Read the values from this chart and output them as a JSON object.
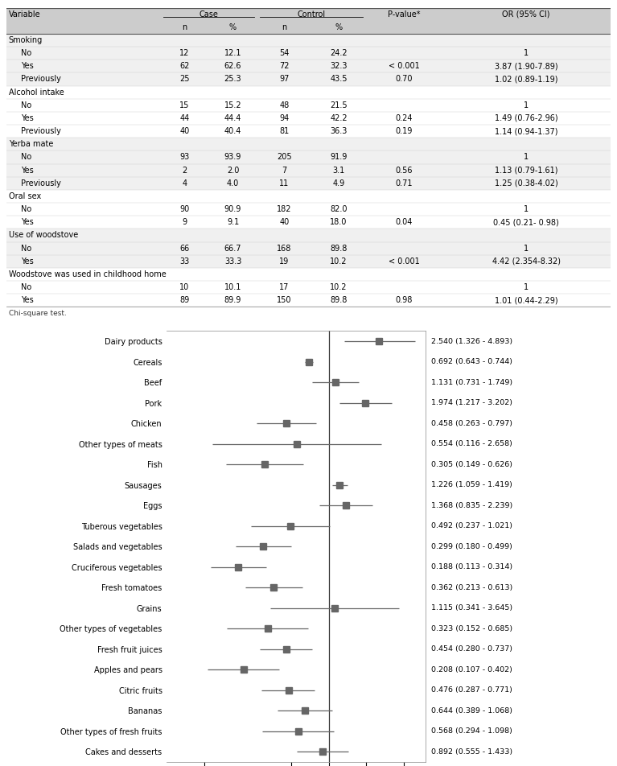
{
  "table": {
    "sections": [
      {
        "title": "Smoking",
        "bg": "#f0f0f0",
        "rows": [
          {
            "label": "No",
            "cn": "12",
            "cp": "12.1",
            "tn": "54",
            "tp": "24.2",
            "pv": "",
            "or": "1"
          },
          {
            "label": "Yes",
            "cn": "62",
            "cp": "62.6",
            "tn": "72",
            "tp": "32.3",
            "pv": "< 0.001",
            "or": "3.87 (1.90-7.89)"
          },
          {
            "label": "Previously",
            "cn": "25",
            "cp": "25.3",
            "tn": "97",
            "tp": "43.5",
            "pv": "0.70",
            "or": "1.02 (0.89-1.19)"
          }
        ]
      },
      {
        "title": "Alcohol intake",
        "bg": "#ffffff",
        "rows": [
          {
            "label": "No",
            "cn": "15",
            "cp": "15.2",
            "tn": "48",
            "tp": "21.5",
            "pv": "",
            "or": "1"
          },
          {
            "label": "Yes",
            "cn": "44",
            "cp": "44.4",
            "tn": "94",
            "tp": "42.2",
            "pv": "0.24",
            "or": "1.49 (0.76-2.96)"
          },
          {
            "label": "Previously",
            "cn": "40",
            "cp": "40.4",
            "tn": "81",
            "tp": "36.3",
            "pv": "0.19",
            "or": "1.14 (0.94-1.37)"
          }
        ]
      },
      {
        "title": "Yerba mate",
        "bg": "#f0f0f0",
        "rows": [
          {
            "label": "No",
            "cn": "93",
            "cp": "93.9",
            "tn": "205",
            "tp": "91.9",
            "pv": "",
            "or": "1"
          },
          {
            "label": "Yes",
            "cn": "2",
            "cp": "2.0",
            "tn": "7",
            "tp": "3.1",
            "pv": "0.56",
            "or": "1.13 (0.79-1.61)"
          },
          {
            "label": "Previously",
            "cn": "4",
            "cp": "4.0",
            "tn": "11",
            "tp": "4.9",
            "pv": "0.71",
            "or": "1.25 (0.38-4.02)"
          }
        ]
      },
      {
        "title": "Oral sex",
        "bg": "#ffffff",
        "rows": [
          {
            "label": "No",
            "cn": "90",
            "cp": "90.9",
            "tn": "182",
            "tp": "82.0",
            "pv": "",
            "or": "1"
          },
          {
            "label": "Yes",
            "cn": "9",
            "cp": "9.1",
            "tn": "40",
            "tp": "18.0",
            "pv": "0.04",
            "or": "0.45 (0.21- 0.98)"
          }
        ]
      },
      {
        "title": "Use of woodstove",
        "bg": "#f0f0f0",
        "rows": [
          {
            "label": "No",
            "cn": "66",
            "cp": "66.7",
            "tn": "168",
            "tp": "89.8",
            "pv": "",
            "or": "1"
          },
          {
            "label": "Yes",
            "cn": "33",
            "cp": "33.3",
            "tn": "19",
            "tp": "10.2",
            "pv": "< 0.001",
            "or": "4.42 (2.354-8.32)"
          }
        ]
      },
      {
        "title": "Woodstove was used in childhood home",
        "bg": "#ffffff",
        "rows": [
          {
            "label": "No",
            "cn": "10",
            "cp": "10.1",
            "tn": "17",
            "tp": "10.2",
            "pv": "",
            "or": "1"
          },
          {
            "label": "Yes",
            "cn": "89",
            "cp": "89.9",
            "tn": "150",
            "tp": "89.8",
            "pv": "0.98",
            "or": "1.01 (0.44-2.29)"
          }
        ]
      }
    ],
    "footnote": "Chi-square test."
  },
  "forest": {
    "items": [
      {
        "label": "Dairy products",
        "or": 2.54,
        "lo": 1.326,
        "hi": 4.893,
        "text": "2.540 (1.326 - 4.893)"
      },
      {
        "label": "Cereals",
        "or": 0.692,
        "lo": 0.643,
        "hi": 0.744,
        "text": "0.692 (0.643 - 0.744)"
      },
      {
        "label": "Beef",
        "or": 1.131,
        "lo": 0.731,
        "hi": 1.749,
        "text": "1.131 (0.731 - 1.749)"
      },
      {
        "label": "Pork",
        "or": 1.974,
        "lo": 1.217,
        "hi": 3.202,
        "text": "1.974 (1.217 - 3.202)"
      },
      {
        "label": "Chicken",
        "or": 0.458,
        "lo": 0.263,
        "hi": 0.797,
        "text": "0.458 (0.263 - 0.797)"
      },
      {
        "label": "Other types of meats",
        "or": 0.554,
        "lo": 0.116,
        "hi": 2.658,
        "text": "0.554 (0.116 - 2.658)"
      },
      {
        "label": "Fish",
        "or": 0.305,
        "lo": 0.149,
        "hi": 0.626,
        "text": "0.305 (0.149 - 0.626)"
      },
      {
        "label": "Sausages",
        "or": 1.226,
        "lo": 1.059,
        "hi": 1.419,
        "text": "1.226 (1.059 - 1.419)"
      },
      {
        "label": "Eggs",
        "or": 1.368,
        "lo": 0.835,
        "hi": 2.239,
        "text": "1.368 (0.835 - 2.239)"
      },
      {
        "label": "Tuberous vegetables",
        "or": 0.492,
        "lo": 0.237,
        "hi": 1.021,
        "text": "0.492 (0.237 - 1.021)"
      },
      {
        "label": "Salads and vegetables",
        "or": 0.299,
        "lo": 0.18,
        "hi": 0.499,
        "text": "0.299 (0.180 - 0.499)"
      },
      {
        "label": "Cruciferous vegetables",
        "or": 0.188,
        "lo": 0.113,
        "hi": 0.314,
        "text": "0.188 (0.113 - 0.314)"
      },
      {
        "label": "Fresh tomatoes",
        "or": 0.362,
        "lo": 0.213,
        "hi": 0.613,
        "text": "0.362 (0.213 - 0.613)"
      },
      {
        "label": "Grains",
        "or": 1.115,
        "lo": 0.341,
        "hi": 3.645,
        "text": "1.115 (0.341 - 3.645)"
      },
      {
        "label": "Other types of vegetables",
        "or": 0.323,
        "lo": 0.152,
        "hi": 0.685,
        "text": "0.323 (0.152 - 0.685)"
      },
      {
        "label": "Fresh fruit juices",
        "or": 0.454,
        "lo": 0.28,
        "hi": 0.737,
        "text": "0.454 (0.280 - 0.737)"
      },
      {
        "label": "Apples and pears",
        "or": 0.208,
        "lo": 0.107,
        "hi": 0.402,
        "text": "0.208 (0.107 - 0.402)"
      },
      {
        "label": "Citric fruits",
        "or": 0.476,
        "lo": 0.287,
        "hi": 0.771,
        "text": "0.476 (0.287 - 0.771)"
      },
      {
        "label": "Bananas",
        "or": 0.644,
        "lo": 0.389,
        "hi": 1.068,
        "text": "0.644 (0.389 - 1.068)"
      },
      {
        "label": "Other types of fresh fruits",
        "or": 0.568,
        "lo": 0.294,
        "hi": 1.098,
        "text": "0.568 (0.294 - 1.098)"
      },
      {
        "label": "Cakes and desserts",
        "or": 0.892,
        "lo": 0.555,
        "hi": 1.433,
        "text": "0.892 (0.555 - 1.433)"
      }
    ],
    "xmin": 0.05,
    "xmax": 6.0,
    "ref_line": 1.0,
    "xticks": [
      0.1,
      0.5,
      1.0,
      2.0,
      4.0
    ],
    "marker_color": "#666666",
    "line_color": "#666666"
  }
}
